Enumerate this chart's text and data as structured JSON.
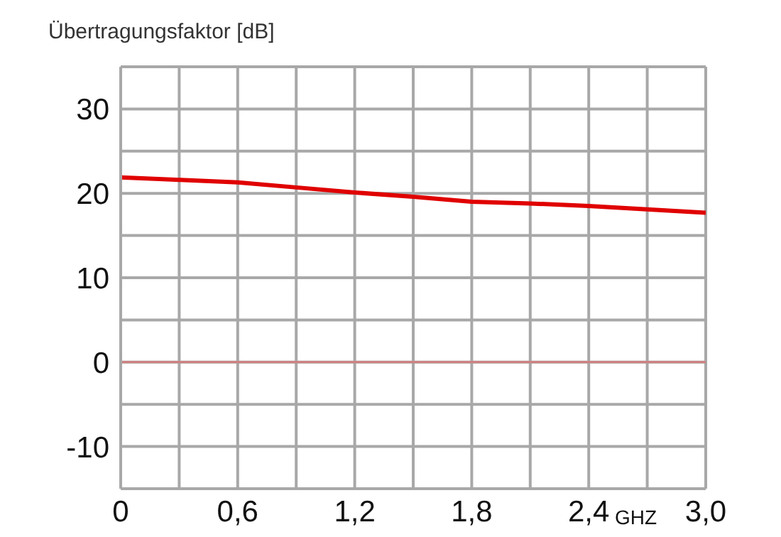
{
  "chart_data": {
    "type": "line",
    "title": "Übertragungsfaktor [dB]",
    "xlabel": "GHZ",
    "x": [
      0,
      0.3,
      0.6,
      0.9,
      1.2,
      1.5,
      1.8,
      2.1,
      2.4,
      2.7,
      3.0
    ],
    "series": [
      {
        "color": "#e00000",
        "values": [
          21.9,
          21.6,
          21.3,
          20.7,
          20.1,
          19.6,
          19.0,
          18.8,
          18.5,
          18.1,
          17.7
        ]
      }
    ],
    "xlim": [
      0,
      3.0
    ],
    "xticks": [
      {
        "value": 0,
        "label": "0"
      },
      {
        "value": 0.3,
        "label": null
      },
      {
        "value": 0.6,
        "label": "0,6"
      },
      {
        "value": 0.9,
        "label": null
      },
      {
        "value": 1.2,
        "label": "1,2"
      },
      {
        "value": 1.5,
        "label": null
      },
      {
        "value": 1.8,
        "label": "1,8"
      },
      {
        "value": 2.1,
        "label": null
      },
      {
        "value": 2.4,
        "label": "2,4"
      },
      {
        "value": 2.7,
        "label": null
      },
      {
        "value": 3.0,
        "label": "3,0"
      }
    ],
    "ylim": [
      -15,
      35
    ],
    "yticks": [
      {
        "value": -15,
        "label": null
      },
      -10,
      {
        "value": -5,
        "label": null
      },
      0,
      {
        "value": 5,
        "label": null
      },
      10,
      {
        "value": 15,
        "label": null
      },
      20,
      {
        "value": 25,
        "label": null
      },
      30,
      {
        "value": 35,
        "label": null
      }
    ],
    "ref_lines": [
      {
        "axis": "y",
        "value": 0,
        "color": "#d08080"
      }
    ],
    "grid": true,
    "marker": "none",
    "line_style": "solid",
    "legend": false
  }
}
